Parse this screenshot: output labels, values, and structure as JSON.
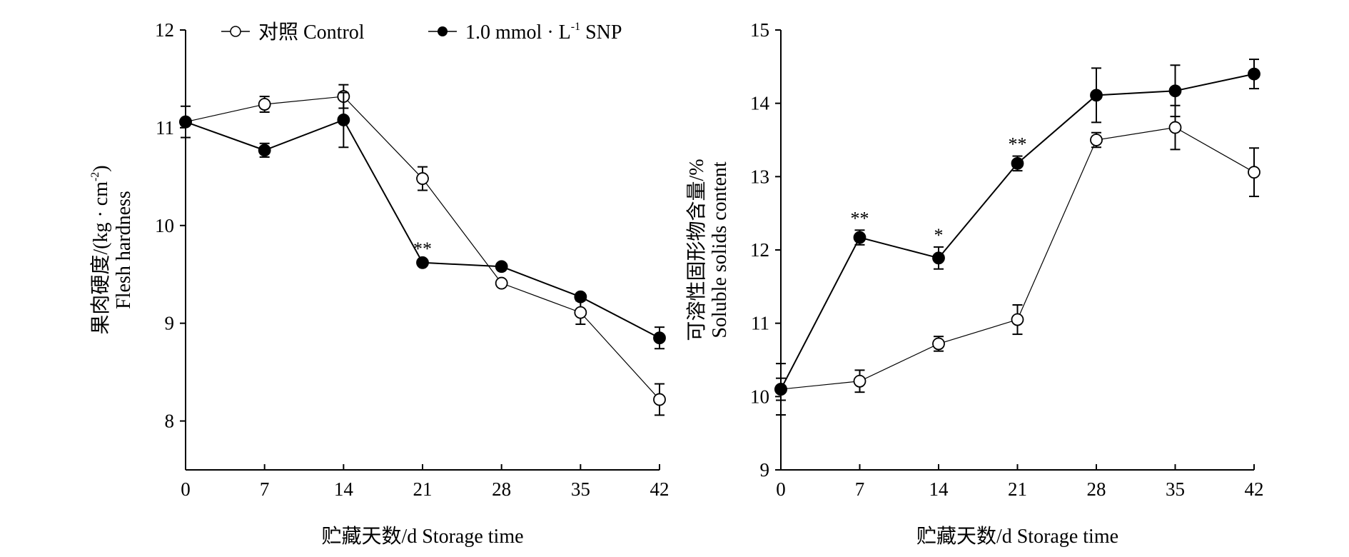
{
  "legend": {
    "control_label": "对照  Control",
    "snp_label": "1.0 mmol · L",
    "snp_sup": "-1",
    "snp_suffix": " SNP"
  },
  "chart_data": [
    {
      "type": "line",
      "ylabel_cn": "果肉硬度/(kg · cm",
      "ylabel_sup": "-2",
      "ylabel_end": ")",
      "ylabel_en": "Flesh hardness",
      "xlabel": "贮藏天数/d Storage time",
      "x": [
        0,
        7,
        14,
        21,
        28,
        35,
        42
      ],
      "xticks": [
        "0",
        "7",
        "14",
        "21",
        "28",
        "35",
        "42"
      ],
      "yticks": [
        "8",
        "9",
        "10",
        "11",
        "12"
      ],
      "ytick_values": [
        8,
        9,
        10,
        11,
        12
      ],
      "ylim": [
        7.5,
        12
      ],
      "xlim": [
        0,
        42
      ],
      "series": [
        {
          "name": "Control",
          "marker": "open-circle",
          "values": [
            11.06,
            11.24,
            11.32,
            10.48,
            9.41,
            9.11,
            8.22
          ],
          "errors": [
            0.03,
            0.08,
            0.12,
            0.12,
            0.03,
            0.12,
            0.16
          ]
        },
        {
          "name": "1.0 mmol·L-1 SNP",
          "marker": "filled-circle",
          "values": [
            11.06,
            10.77,
            11.08,
            9.62,
            9.58,
            9.27,
            8.85
          ],
          "errors": [
            0.16,
            0.07,
            0.28,
            0.02,
            0.02,
            0.02,
            0.11
          ]
        }
      ],
      "annotations": [
        {
          "x": 21,
          "series": 1,
          "text": "**"
        }
      ]
    },
    {
      "type": "line",
      "ylabel_cn": "可溶性固形物含量/%",
      "ylabel_en": "Soluble solids content",
      "xlabel": "贮藏天数/d Storage time",
      "x": [
        0,
        7,
        14,
        21,
        28,
        35,
        42
      ],
      "xticks": [
        "0",
        "7",
        "14",
        "21",
        "28",
        "35",
        "42"
      ],
      "yticks": [
        "9",
        "10",
        "11",
        "12",
        "13",
        "14",
        "15"
      ],
      "ytick_values": [
        9,
        10,
        11,
        12,
        13,
        14,
        15
      ],
      "ylim": [
        9,
        15
      ],
      "xlim": [
        0,
        42
      ],
      "series": [
        {
          "name": "Control",
          "marker": "open-circle",
          "values": [
            10.1,
            10.21,
            10.72,
            11.05,
            13.5,
            13.67,
            13.06
          ],
          "errors": [
            0.15,
            0.15,
            0.1,
            0.2,
            0.1,
            0.3,
            0.33
          ]
        },
        {
          "name": "1.0 mmol·L-1 SNP",
          "marker": "filled-circle",
          "values": [
            10.1,
            12.17,
            11.89,
            13.18,
            14.11,
            14.17,
            14.4
          ],
          "errors": [
            0.35,
            0.1,
            0.15,
            0.1,
            0.37,
            0.35,
            0.2
          ]
        }
      ],
      "annotations": [
        {
          "x": 7,
          "series": 1,
          "text": "**"
        },
        {
          "x": 14,
          "series": 1,
          "text": "*"
        },
        {
          "x": 21,
          "series": 1,
          "text": "**"
        }
      ]
    }
  ]
}
